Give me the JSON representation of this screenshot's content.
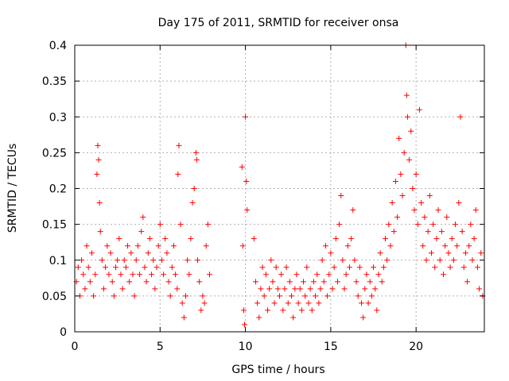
{
  "chart_data": {
    "type": "scatter",
    "title": "Day 175 of 2011, SRMTID for receiver onsa",
    "xlabel": "GPS time / hours",
    "ylabel": "SRMTID / TECUs",
    "xlim": [
      0,
      24
    ],
    "ylim": [
      0,
      0.4
    ],
    "x_ticks": [
      0,
      5,
      10,
      15,
      20
    ],
    "x_tick_labels": [
      "0",
      "5",
      "10",
      "15",
      "20"
    ],
    "y_ticks": [
      0,
      0.05,
      0.1,
      0.15,
      0.2,
      0.25,
      0.3,
      0.35,
      0.4
    ],
    "y_tick_labels": [
      "0",
      "0.05",
      "0.1",
      "0.15",
      "0.2",
      "0.25",
      "0.3",
      "0.35",
      "0.4"
    ],
    "grid": true,
    "marker": "+",
    "color": "#ff0000",
    "series": [
      {
        "name": "SRMTID",
        "points": [
          [
            0.1,
            0.07
          ],
          [
            0.2,
            0.09
          ],
          [
            0.3,
            0.05
          ],
          [
            0.4,
            0.1
          ],
          [
            0.5,
            0.08
          ],
          [
            0.6,
            0.06
          ],
          [
            0.7,
            0.12
          ],
          [
            0.8,
            0.09
          ],
          [
            0.9,
            0.07
          ],
          [
            1.0,
            0.11
          ],
          [
            1.1,
            0.05
          ],
          [
            1.2,
            0.08
          ],
          [
            1.3,
            0.22
          ],
          [
            1.35,
            0.26
          ],
          [
            1.4,
            0.24
          ],
          [
            1.45,
            0.18
          ],
          [
            1.5,
            0.14
          ],
          [
            1.6,
            0.1
          ],
          [
            1.7,
            0.06
          ],
          [
            1.8,
            0.09
          ],
          [
            1.9,
            0.12
          ],
          [
            2.0,
            0.08
          ],
          [
            2.1,
            0.11
          ],
          [
            2.2,
            0.07
          ],
          [
            2.3,
            0.05
          ],
          [
            2.4,
            0.09
          ],
          [
            2.5,
            0.1
          ],
          [
            2.6,
            0.13
          ],
          [
            2.7,
            0.08
          ],
          [
            2.8,
            0.06
          ],
          [
            2.9,
            0.1
          ],
          [
            3.0,
            0.09
          ],
          [
            3.1,
            0.12
          ],
          [
            3.2,
            0.07
          ],
          [
            3.3,
            0.11
          ],
          [
            3.4,
            0.08
          ],
          [
            3.5,
            0.05
          ],
          [
            3.6,
            0.1
          ],
          [
            3.7,
            0.12
          ],
          [
            3.8,
            0.08
          ],
          [
            3.9,
            0.14
          ],
          [
            4.0,
            0.16
          ],
          [
            4.1,
            0.09
          ],
          [
            4.2,
            0.07
          ],
          [
            4.3,
            0.11
          ],
          [
            4.4,
            0.13
          ],
          [
            4.5,
            0.08
          ],
          [
            4.6,
            0.1
          ],
          [
            4.7,
            0.06
          ],
          [
            4.8,
            0.09
          ],
          [
            4.9,
            0.12
          ],
          [
            5.0,
            0.15
          ],
          [
            5.1,
            0.1
          ],
          [
            5.2,
            0.08
          ],
          [
            5.3,
            0.13
          ],
          [
            5.4,
            0.11
          ],
          [
            5.5,
            0.07
          ],
          [
            5.6,
            0.05
          ],
          [
            5.7,
            0.09
          ],
          [
            5.8,
            0.12
          ],
          [
            5.9,
            0.08
          ],
          [
            6.0,
            0.06
          ],
          [
            6.05,
            0.22
          ],
          [
            6.1,
            0.26
          ],
          [
            6.2,
            0.15
          ],
          [
            6.3,
            0.04
          ],
          [
            6.4,
            0.02
          ],
          [
            6.5,
            0.05
          ],
          [
            6.6,
            0.1
          ],
          [
            6.7,
            0.08
          ],
          [
            6.8,
            0.13
          ],
          [
            6.9,
            0.18
          ],
          [
            7.0,
            0.2
          ],
          [
            7.1,
            0.25
          ],
          [
            7.15,
            0.24
          ],
          [
            7.2,
            0.1
          ],
          [
            7.3,
            0.07
          ],
          [
            7.4,
            0.03
          ],
          [
            7.5,
            0.05
          ],
          [
            7.6,
            0.04
          ],
          [
            7.7,
            0.12
          ],
          [
            7.8,
            0.15
          ],
          [
            7.9,
            0.08
          ],
          [
            9.8,
            0.23
          ],
          [
            9.85,
            0.12
          ],
          [
            9.9,
            0.03
          ],
          [
            9.95,
            0.01
          ],
          [
            10.0,
            0.3
          ],
          [
            10.05,
            0.21
          ],
          [
            10.1,
            0.17
          ],
          [
            10.5,
            0.13
          ],
          [
            10.6,
            0.07
          ],
          [
            10.7,
            0.04
          ],
          [
            10.8,
            0.02
          ],
          [
            10.9,
            0.06
          ],
          [
            11.0,
            0.09
          ],
          [
            11.1,
            0.05
          ],
          [
            11.2,
            0.08
          ],
          [
            11.3,
            0.03
          ],
          [
            11.4,
            0.06
          ],
          [
            11.5,
            0.1
          ],
          [
            11.6,
            0.07
          ],
          [
            11.7,
            0.04
          ],
          [
            11.8,
            0.09
          ],
          [
            11.9,
            0.06
          ],
          [
            12.0,
            0.05
          ],
          [
            12.1,
            0.08
          ],
          [
            12.2,
            0.03
          ],
          [
            12.3,
            0.06
          ],
          [
            12.4,
            0.09
          ],
          [
            12.5,
            0.04
          ],
          [
            12.6,
            0.07
          ],
          [
            12.7,
            0.05
          ],
          [
            12.8,
            0.02
          ],
          [
            12.9,
            0.06
          ],
          [
            13.0,
            0.08
          ],
          [
            13.1,
            0.04
          ],
          [
            13.2,
            0.06
          ],
          [
            13.3,
            0.03
          ],
          [
            13.4,
            0.07
          ],
          [
            13.5,
            0.05
          ],
          [
            13.6,
            0.09
          ],
          [
            13.7,
            0.04
          ],
          [
            13.8,
            0.06
          ],
          [
            13.9,
            0.03
          ],
          [
            14.0,
            0.07
          ],
          [
            14.1,
            0.05
          ],
          [
            14.2,
            0.08
          ],
          [
            14.3,
            0.04
          ],
          [
            14.4,
            0.06
          ],
          [
            14.5,
            0.1
          ],
          [
            14.6,
            0.07
          ],
          [
            14.7,
            0.12
          ],
          [
            14.8,
            0.05
          ],
          [
            14.9,
            0.08
          ],
          [
            15.0,
            0.11
          ],
          [
            15.1,
            0.06
          ],
          [
            15.2,
            0.09
          ],
          [
            15.3,
            0.13
          ],
          [
            15.4,
            0.07
          ],
          [
            15.5,
            0.15
          ],
          [
            15.6,
            0.19
          ],
          [
            15.7,
            0.1
          ],
          [
            15.8,
            0.06
          ],
          [
            15.9,
            0.08
          ],
          [
            16.0,
            0.12
          ],
          [
            16.1,
            0.09
          ],
          [
            16.2,
            0.13
          ],
          [
            16.3,
            0.17
          ],
          [
            16.4,
            0.1
          ],
          [
            16.5,
            0.07
          ],
          [
            16.6,
            0.05
          ],
          [
            16.7,
            0.09
          ],
          [
            16.8,
            0.04
          ],
          [
            16.9,
            0.02
          ],
          [
            17.0,
            0.06
          ],
          [
            17.1,
            0.08
          ],
          [
            17.2,
            0.04
          ],
          [
            17.3,
            0.07
          ],
          [
            17.4,
            0.05
          ],
          [
            17.5,
            0.09
          ],
          [
            17.6,
            0.06
          ],
          [
            17.7,
            0.03
          ],
          [
            17.8,
            0.08
          ],
          [
            17.9,
            0.11
          ],
          [
            18.0,
            0.07
          ],
          [
            18.1,
            0.09
          ],
          [
            18.2,
            0.13
          ],
          [
            18.3,
            0.1
          ],
          [
            18.4,
            0.15
          ],
          [
            18.5,
            0.12
          ],
          [
            18.6,
            0.18
          ],
          [
            18.7,
            0.14
          ],
          [
            18.8,
            0.21
          ],
          [
            18.9,
            0.16
          ],
          [
            19.0,
            0.27
          ],
          [
            19.1,
            0.22
          ],
          [
            19.2,
            0.19
          ],
          [
            19.3,
            0.25
          ],
          [
            19.4,
            0.4
          ],
          [
            19.45,
            0.33
          ],
          [
            19.5,
            0.3
          ],
          [
            19.6,
            0.24
          ],
          [
            19.7,
            0.28
          ],
          [
            19.8,
            0.2
          ],
          [
            19.9,
            0.17
          ],
          [
            20.0,
            0.22
          ],
          [
            20.1,
            0.15
          ],
          [
            20.2,
            0.31
          ],
          [
            20.3,
            0.18
          ],
          [
            20.4,
            0.12
          ],
          [
            20.5,
            0.16
          ],
          [
            20.6,
            0.1
          ],
          [
            20.7,
            0.14
          ],
          [
            20.8,
            0.19
          ],
          [
            20.9,
            0.11
          ],
          [
            21.0,
            0.15
          ],
          [
            21.1,
            0.09
          ],
          [
            21.2,
            0.13
          ],
          [
            21.3,
            0.17
          ],
          [
            21.4,
            0.1
          ],
          [
            21.5,
            0.14
          ],
          [
            21.6,
            0.08
          ],
          [
            21.7,
            0.12
          ],
          [
            21.8,
            0.16
          ],
          [
            21.9,
            0.11
          ],
          [
            22.0,
            0.09
          ],
          [
            22.1,
            0.13
          ],
          [
            22.2,
            0.1
          ],
          [
            22.3,
            0.15
          ],
          [
            22.4,
            0.12
          ],
          [
            22.5,
            0.18
          ],
          [
            22.6,
            0.3
          ],
          [
            22.7,
            0.14
          ],
          [
            22.8,
            0.09
          ],
          [
            22.9,
            0.11
          ],
          [
            23.0,
            0.07
          ],
          [
            23.1,
            0.12
          ],
          [
            23.2,
            0.15
          ],
          [
            23.3,
            0.1
          ],
          [
            23.4,
            0.13
          ],
          [
            23.5,
            0.17
          ],
          [
            23.6,
            0.09
          ],
          [
            23.7,
            0.06
          ],
          [
            23.8,
            0.11
          ],
          [
            23.9,
            0.05
          ]
        ]
      }
    ]
  }
}
